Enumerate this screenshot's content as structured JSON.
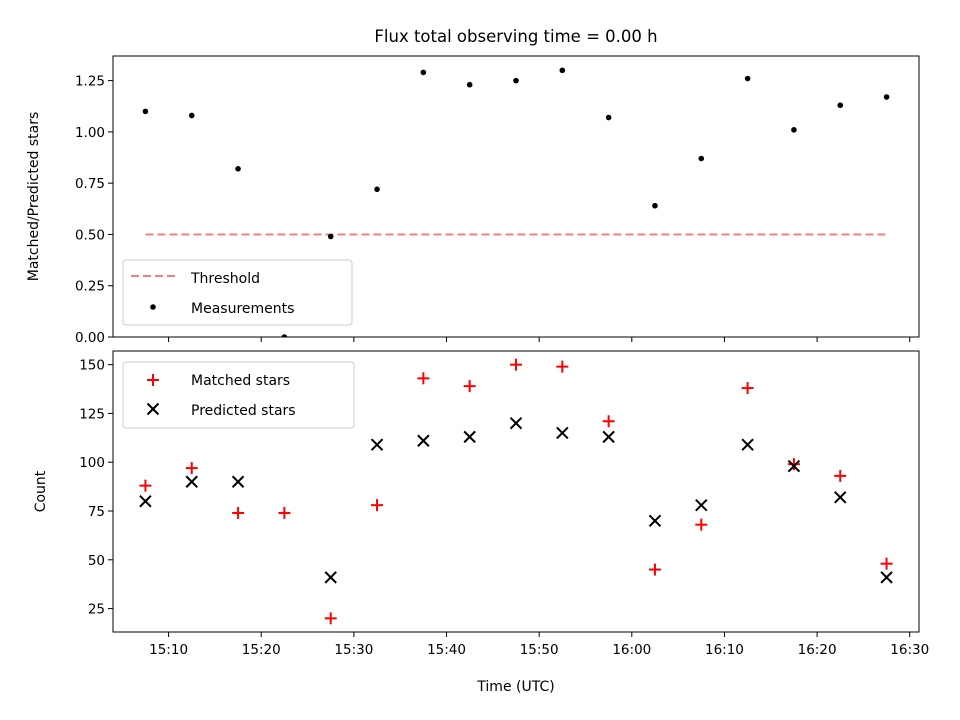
{
  "chart_data": {
    "title": "Flux total observing time = 0.00 h",
    "xlabel": "Time (UTC)",
    "x_tick_labels": [
      "15:10",
      "15:20",
      "15:30",
      "15:40",
      "15:50",
      "16:00",
      "16:10",
      "16:20",
      "16:30"
    ],
    "x_times": [
      "15:07:30",
      "15:12:30",
      "15:17:30",
      "15:22:30",
      "15:27:30",
      "15:32:30",
      "15:37:30",
      "15:42:30",
      "15:47:30",
      "15:52:30",
      "15:57:30",
      "16:02:30",
      "16:07:30",
      "16:12:30",
      "16:17:30",
      "16:22:30",
      "16:27:30"
    ],
    "xlim": [
      "15:04:00",
      "16:31:00"
    ],
    "panels": [
      {
        "type": "scatter",
        "ylabel": "Matched/Predicted stars",
        "ylim": [
          0,
          1.37
        ],
        "yticks": [
          0.0,
          0.25,
          0.5,
          0.75,
          1.0,
          1.25
        ],
        "ytick_labels": [
          "0.00",
          "0.25",
          "0.50",
          "0.75",
          "1.00",
          "1.25"
        ],
        "threshold": {
          "name": "Threshold",
          "value": 0.5,
          "x_start": "15:07:30",
          "x_end": "16:27:30",
          "color": "#f08080"
        },
        "series": [
          {
            "name": "Measurements",
            "color": "#000000",
            "values": [
              1.1,
              1.08,
              0.82,
              0.0,
              0.49,
              0.72,
              1.29,
              1.23,
              1.25,
              1.3,
              1.07,
              0.64,
              0.87,
              1.26,
              1.01,
              1.13,
              1.17
            ]
          }
        ],
        "legend": "lower-left"
      },
      {
        "type": "scatter",
        "ylabel": "Count",
        "ylim": [
          13,
          157
        ],
        "yticks": [
          25,
          50,
          75,
          100,
          125,
          150
        ],
        "ytick_labels": [
          "25",
          "50",
          "75",
          "100",
          "125",
          "150"
        ],
        "series": [
          {
            "name": "Matched stars",
            "marker": "plus",
            "color": "#ff0000",
            "values": [
              88,
              97,
              74,
              74,
              20,
              78,
              143,
              139,
              150,
              149,
              121,
              45,
              68,
              138,
              99,
              93,
              48
            ]
          },
          {
            "name": "Predicted stars",
            "marker": "x",
            "color": "#000000",
            "values": [
              80,
              90,
              90,
              null,
              41,
              109,
              111,
              113,
              120,
              115,
              113,
              70,
              78,
              109,
              98,
              82,
              41
            ]
          }
        ],
        "legend": "upper-left"
      }
    ]
  }
}
